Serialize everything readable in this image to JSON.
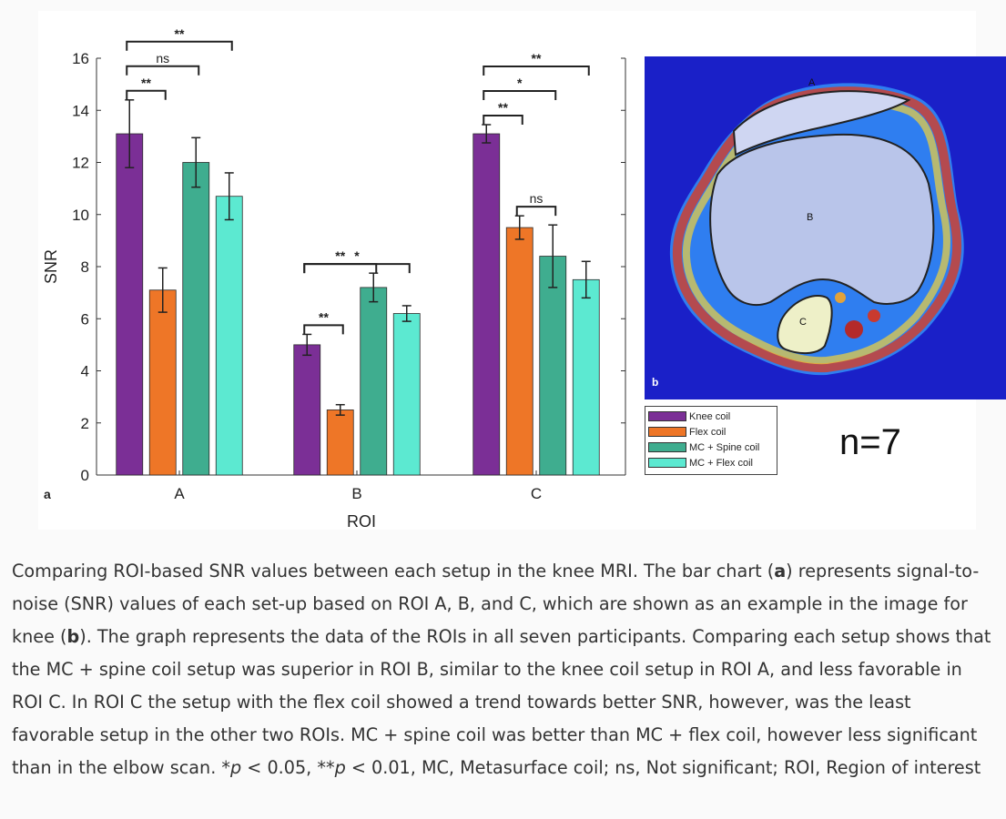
{
  "chart_data": {
    "type": "bar",
    "categories": [
      "A",
      "B",
      "C"
    ],
    "xlabel": "ROI",
    "ylabel": "SNR",
    "ylim": [
      0,
      16
    ],
    "yticks": [
      0,
      2,
      4,
      6,
      8,
      10,
      12,
      14,
      16
    ],
    "panel_label": "a",
    "series": [
      {
        "name": "Knee coil",
        "color": "#7B2F96",
        "values": [
          13.1,
          5.0,
          13.1
        ],
        "errors": [
          1.3,
          0.4,
          0.35
        ]
      },
      {
        "name": "Flex coil",
        "color": "#EE7627",
        "values": [
          7.1,
          2.5,
          9.5
        ],
        "errors": [
          0.85,
          0.2,
          0.45
        ]
      },
      {
        "name": "MC + Spine coil",
        "color": "#3FAD8F",
        "values": [
          12.0,
          7.2,
          8.4
        ],
        "errors": [
          0.95,
          0.55,
          1.2
        ]
      },
      {
        "name": "MC + Flex coil",
        "color": "#5CE9D1",
        "values": [
          10.7,
          6.2,
          7.5
        ],
        "errors": [
          0.9,
          0.3,
          0.7
        ]
      }
    ],
    "significance": [
      {
        "group": "A",
        "from": 0,
        "to": 1,
        "label": "**"
      },
      {
        "group": "A",
        "from": 0,
        "to": 2,
        "label": "ns"
      },
      {
        "group": "A",
        "from": 0,
        "to": 3,
        "label": "**"
      },
      {
        "group": "B",
        "from": 0,
        "to": 1,
        "label": "**"
      },
      {
        "group": "B",
        "from": 0,
        "to": 2,
        "label": "**"
      },
      {
        "group": "B",
        "from": 0,
        "to": 3,
        "label": "*"
      },
      {
        "group": "C",
        "from": 0,
        "to": 1,
        "label": "**"
      },
      {
        "group": "C",
        "from": 0,
        "to": 2,
        "label": "*"
      },
      {
        "group": "C",
        "from": 0,
        "to": 3,
        "label": "**"
      },
      {
        "group": "C",
        "from": 1,
        "to": 2,
        "label": "ns"
      }
    ],
    "legend_placement": "bottom-right"
  },
  "mri": {
    "panel_label": "b",
    "roi_labels": [
      "A",
      "B",
      "C"
    ]
  },
  "n_label": "n=7",
  "caption": {
    "p1": "Comparing ROI-based SNR values between each setup in the knee MRI. The bar chart (",
    "b1": "a",
    "p2": ") represents signal-to-noise (SNR) values of each set-up based on ROI A, B, and C, which are shown as an example in the image for knee (",
    "b2": "b",
    "p3": "). The graph represents the data of the ROIs in all seven participants. Comparing each setup shows that the MC + spine coil setup was superior in ROI B, similar to the knee coil setup in ROI A, and less favorable in ROI C. In ROI C the setup with the flex coil showed a trend towards better SNR, however, was the least favorable setup in the other two ROIs. MC + spine coil was better than MC + flex coil, however less significant than in the elbow scan. *",
    "i1": "p",
    "p4": " < 0.05, **",
    "i2": "p",
    "p5": " < 0.01, MC, Metasurface coil; ns, Not significant; ROI, Region of interest"
  }
}
